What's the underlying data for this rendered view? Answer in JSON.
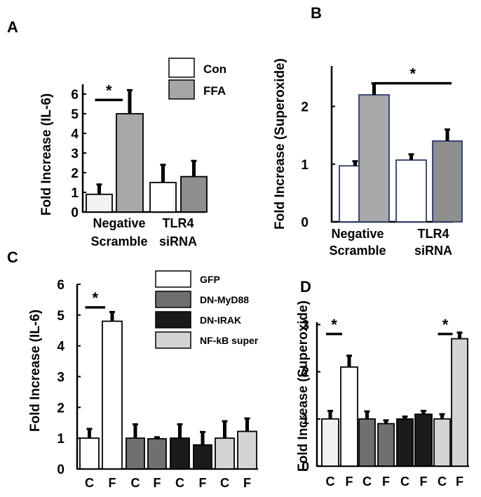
{
  "chart_data": [
    {
      "panel": "A",
      "type": "bar",
      "ylabel": "Fold Increase (IL-6)",
      "ylim": [
        0,
        6.5
      ],
      "yticks": [
        0,
        1,
        2,
        3,
        4,
        5,
        6
      ],
      "groups": [
        {
          "label_lines": [
            "Negative",
            "Scramble"
          ]
        },
        {
          "label_lines": [
            "TLR4",
            "siRNA"
          ]
        }
      ],
      "legend": [
        {
          "name": "Con",
          "color": "#ffffff"
        },
        {
          "name": "FFA",
          "color": "#a6a6a6"
        }
      ],
      "bars": [
        {
          "group": 0,
          "series": "Con",
          "value": 0.9,
          "err": 0.5,
          "color": "#f2f2f2"
        },
        {
          "group": 0,
          "series": "FFA",
          "value": 5.0,
          "err": 1.2,
          "color": "#a8a8a8"
        },
        {
          "group": 1,
          "series": "Con",
          "value": 1.5,
          "err": 0.9,
          "color": "#ffffff"
        },
        {
          "group": 1,
          "series": "FFA",
          "value": 1.8,
          "err": 0.8,
          "color": "#8f8f8f"
        }
      ],
      "significance": [
        {
          "from": 0,
          "to": 1,
          "y": 5.7,
          "label": "*"
        }
      ]
    },
    {
      "panel": "B",
      "type": "bar",
      "ylabel": "Fold Increase (Superoxide)",
      "ylim": [
        0,
        2.7
      ],
      "yticks": [
        0,
        1,
        2
      ],
      "groups": [
        {
          "label_lines": [
            "Negative",
            "Scramble"
          ]
        },
        {
          "label_lines": [
            "TLR4",
            "siRNA"
          ]
        }
      ],
      "bars": [
        {
          "group": 0,
          "value": 0.97,
          "err": 0.08,
          "color": "#ffffff"
        },
        {
          "group": 0,
          "value": 2.2,
          "err": 0.2,
          "color": "#a8a8a8"
        },
        {
          "group": 1,
          "value": 1.07,
          "err": 0.1,
          "color": "#ffffff"
        },
        {
          "group": 1,
          "value": 1.4,
          "err": 0.2,
          "color": "#8f8f8f"
        }
      ],
      "significance": [
        {
          "from": 1,
          "to": 3,
          "y": 2.4,
          "label": "*"
        }
      ]
    },
    {
      "panel": "C",
      "type": "bar",
      "ylabel": "Fold Increase (IL-6)",
      "ylim": [
        0,
        6
      ],
      "yticks": [
        0,
        1,
        2,
        3,
        4,
        5,
        6
      ],
      "legend": [
        {
          "name": "GFP",
          "color": "#ffffff"
        },
        {
          "name": "DN-MyD88",
          "color": "#707070"
        },
        {
          "name": "DN-IRAK",
          "color": "#1a1a1a"
        },
        {
          "name": "NF-kB super",
          "color": "#d4d4d4"
        }
      ],
      "categories": [
        "C",
        "F",
        "C",
        "F",
        "C",
        "F",
        "C",
        "F"
      ],
      "bars": [
        {
          "value": 1.0,
          "err": 0.3,
          "color": "#ffffff"
        },
        {
          "value": 4.8,
          "err": 0.3,
          "color": "#ffffff"
        },
        {
          "value": 1.0,
          "err": 0.45,
          "color": "#707070"
        },
        {
          "value": 0.98,
          "err": 0.05,
          "color": "#707070"
        },
        {
          "value": 1.0,
          "err": 0.45,
          "color": "#1a1a1a"
        },
        {
          "value": 0.78,
          "err": 0.42,
          "color": "#1a1a1a"
        },
        {
          "value": 1.0,
          "err": 0.55,
          "color": "#d4d4d4"
        },
        {
          "value": 1.22,
          "err": 0.42,
          "color": "#d4d4d4"
        }
      ],
      "significance": [
        {
          "from": 0,
          "to": 1,
          "y": 5.25,
          "label": "*"
        }
      ]
    },
    {
      "panel": "D",
      "type": "bar",
      "ylabel": "Fold Increase (Superoxide)",
      "ylim": [
        0,
        3.05
      ],
      "yticks": [
        0,
        1,
        2,
        3
      ],
      "categories": [
        "C",
        "F",
        "C",
        "F",
        "C",
        "F",
        "C",
        "F"
      ],
      "bars": [
        {
          "value": 1.0,
          "err": 0.17,
          "color": "#f2f2f2"
        },
        {
          "value": 2.1,
          "err": 0.24,
          "color": "#ffffff"
        },
        {
          "value": 1.0,
          "err": 0.16,
          "color": "#707070"
        },
        {
          "value": 0.9,
          "err": 0.07,
          "color": "#707070"
        },
        {
          "value": 1.0,
          "err": 0.05,
          "color": "#1a1a1a"
        },
        {
          "value": 1.1,
          "err": 0.07,
          "color": "#1a1a1a"
        },
        {
          "value": 1.0,
          "err": 0.1,
          "color": "#d4d4d4"
        },
        {
          "value": 2.7,
          "err": 0.13,
          "color": "#d4d4d4"
        }
      ],
      "significance": [
        {
          "from": 0,
          "to": 1,
          "y": 2.8,
          "label": "*"
        },
        {
          "from": 6,
          "to": 7,
          "y": 2.8,
          "label": "*"
        }
      ]
    }
  ]
}
